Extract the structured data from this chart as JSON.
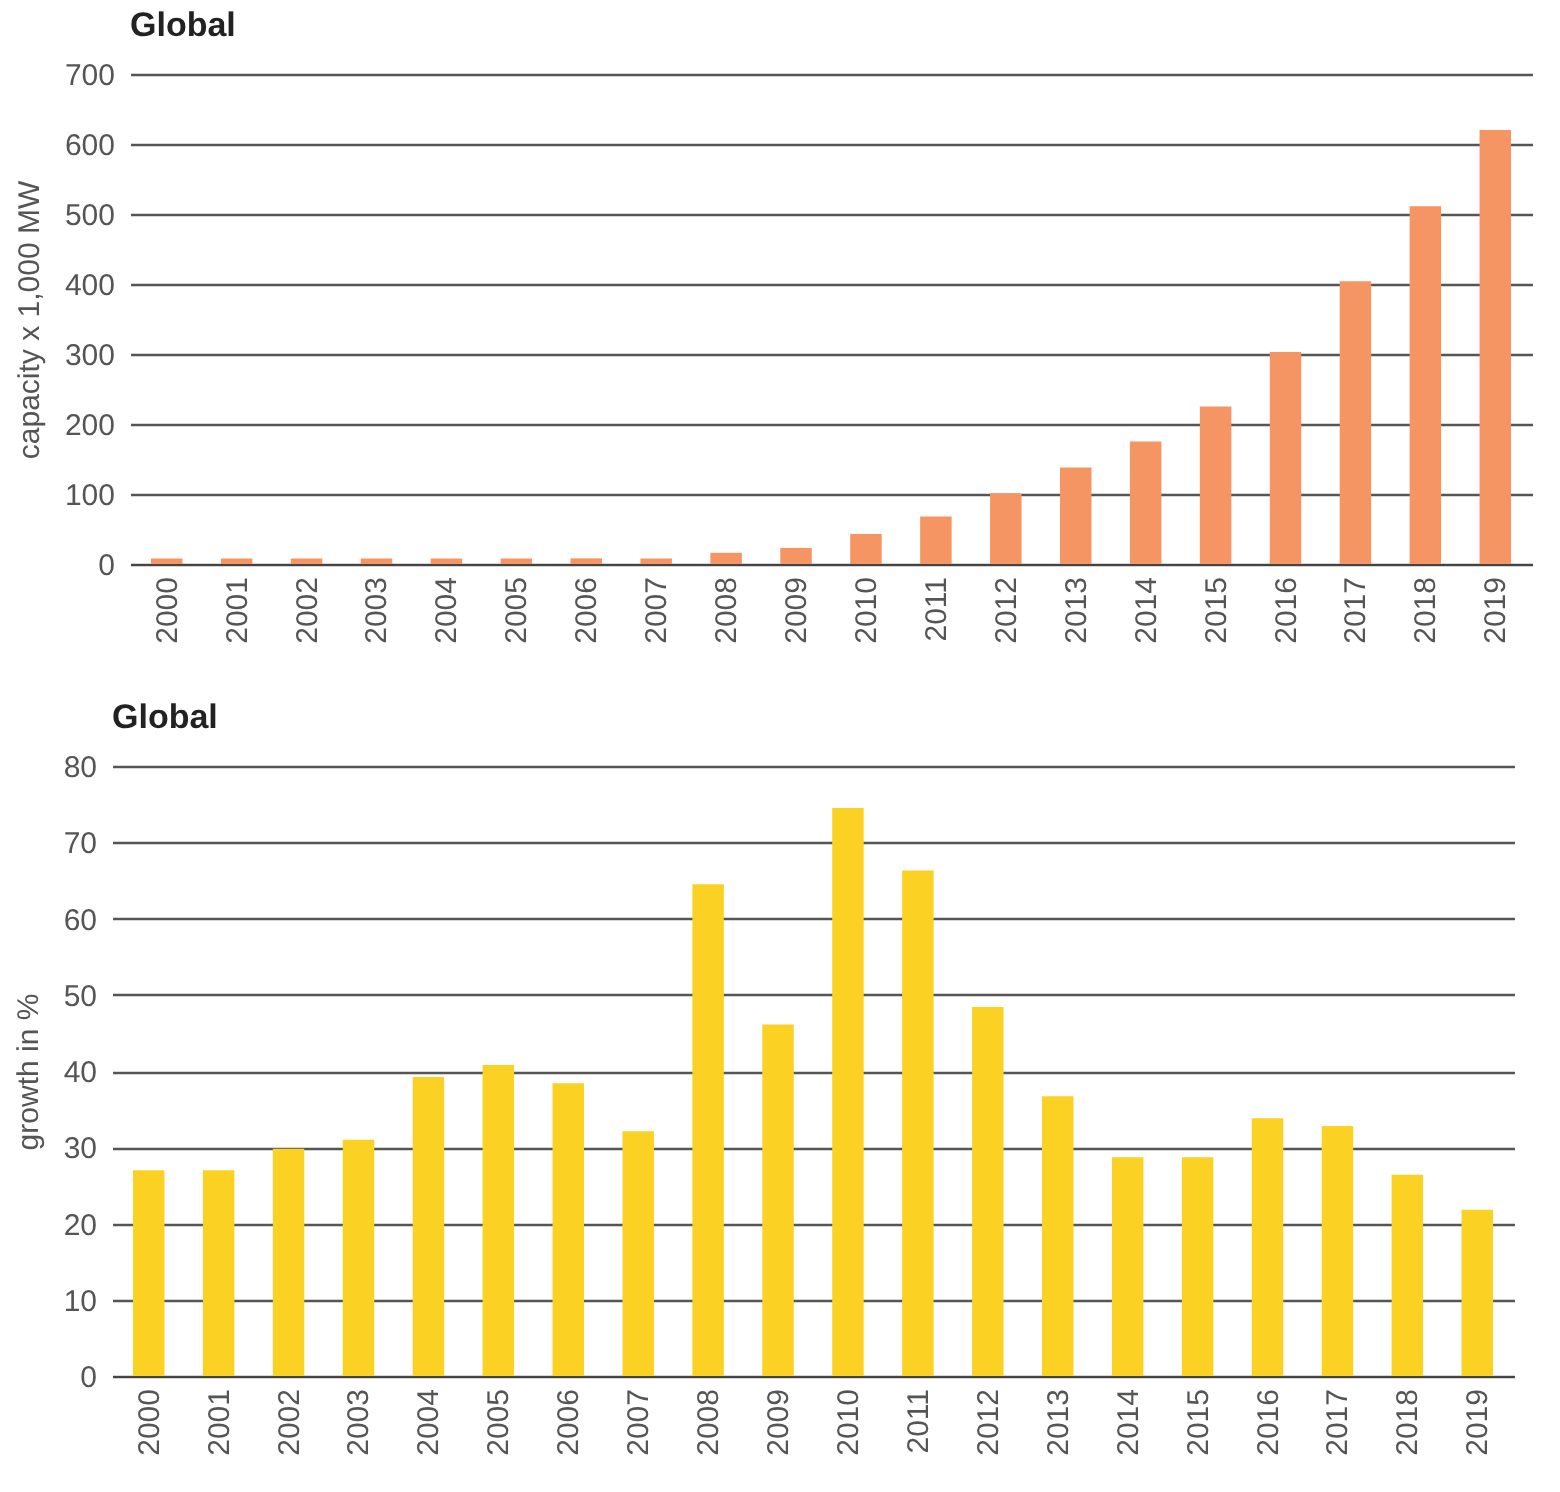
{
  "chart_data": [
    {
      "type": "bar",
      "title": "Global",
      "ylabel": "capacity x 1,000 MW",
      "categories": [
        "2000",
        "2001",
        "2002",
        "2003",
        "2004",
        "2005",
        "2006",
        "2007",
        "2008",
        "2009",
        "2010",
        "2011",
        "2012",
        "2013",
        "2014",
        "2015",
        "2016",
        "2017",
        "2018",
        "2019"
      ],
      "series": [
        {
          "color": "#f49563",
          "values": [
            8,
            8,
            8,
            8,
            8,
            8,
            8,
            8,
            16,
            23,
            43,
            68,
            101,
            138,
            175,
            225,
            303,
            404,
            511,
            620
          ]
        }
      ],
      "ylim": [
        0,
        700
      ],
      "yticks": [
        0,
        100,
        200,
        300,
        400,
        500,
        600,
        700
      ],
      "grid": "y"
    },
    {
      "type": "bar",
      "title": "Global",
      "ylabel": "growth in %",
      "categories": [
        "2000",
        "2001",
        "2002",
        "2003",
        "2004",
        "2005",
        "2006",
        "2007",
        "2008",
        "2009",
        "2010",
        "2011",
        "2012",
        "2013",
        "2014",
        "2015",
        "2016",
        "2017",
        "2018",
        "2019"
      ],
      "series": [
        {
          "color": "#fbd224",
          "values": [
            27,
            27,
            29.8,
            31,
            39.2,
            40.8,
            38.4,
            32.1,
            64.5,
            46.1,
            74.5,
            66.3,
            48.4,
            36.7,
            28.7,
            28.7,
            33.8,
            32.8,
            26.4,
            21.8
          ]
        }
      ],
      "ylim": [
        0,
        80
      ],
      "yticks": [
        0,
        10,
        20,
        30,
        40,
        50,
        60,
        70,
        80
      ],
      "grid": "y"
    }
  ]
}
